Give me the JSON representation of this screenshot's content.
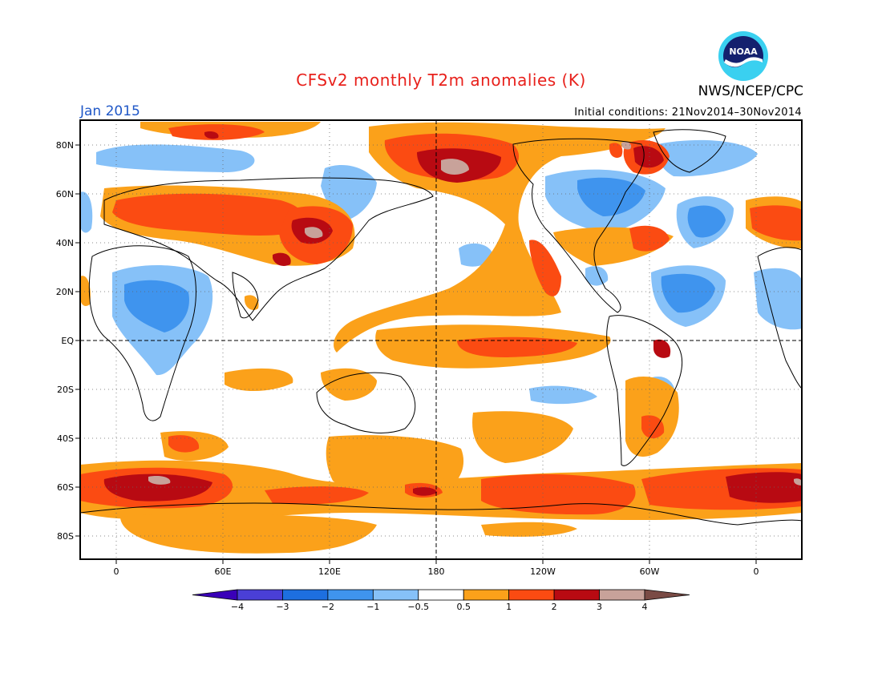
{
  "title": "CFSv2 monthly T2m anomalies (K)",
  "organization": "NWS/NCEP/CPC",
  "logo_text": "NOAA",
  "period": "Jan 2015",
  "initial_conditions": "Initial conditions: 21Nov2014–30Nov2014",
  "lat_labels": [
    "80N",
    "60N",
    "40N",
    "20N",
    "EQ",
    "20S",
    "40S",
    "60S",
    "80S"
  ],
  "lon_labels": [
    "0",
    "60E",
    "120E",
    "180",
    "120W",
    "60W",
    "0"
  ],
  "colorbar": {
    "labels": [
      "−4",
      "−3",
      "−2",
      "−1",
      "−0.5",
      "0.5",
      "1",
      "2",
      "3",
      "4"
    ],
    "colors": [
      "#3a00b8",
      "#4a3fd6",
      "#1d6fe0",
      "#3f94ee",
      "#86c1f8",
      "#ffffff",
      "#fba11a",
      "#fb4b12",
      "#b80a12",
      "#c8a29a",
      "#7a4b45"
    ]
  },
  "colors": {
    "title": "#e8211c",
    "period": "#1f57c7",
    "ocean": "#ffffff"
  }
}
